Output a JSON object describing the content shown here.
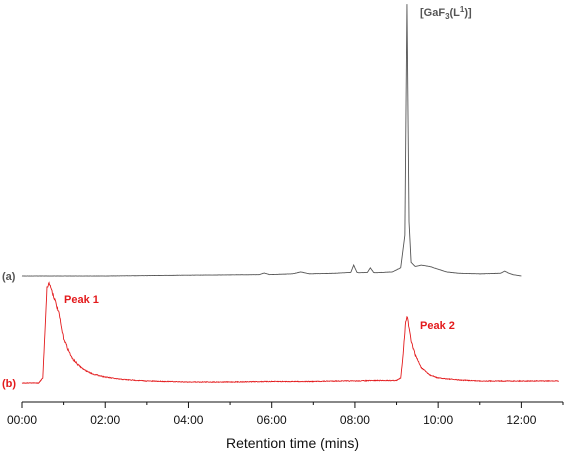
{
  "chart_data": {
    "type": "line",
    "title": "",
    "xlabel": "Retention time (mins)",
    "ylabel": "",
    "x_unit": "min",
    "xlim": [
      0,
      13
    ],
    "x_ticks": [
      0,
      2,
      4,
      6,
      8,
      10,
      12
    ],
    "x_tick_labels": [
      "00:00",
      "02:00",
      "04:00",
      "06:00",
      "08:00",
      "10:00",
      "12:00"
    ],
    "y_axis_shown": false,
    "grid": false,
    "legend": "none",
    "series": [
      {
        "label": "(a)",
        "color": "#555555",
        "x": [
          0.0,
          2.0,
          4.0,
          5.7,
          5.82,
          5.95,
          6.5,
          6.7,
          6.9,
          7.5,
          7.9,
          7.97,
          8.05,
          8.1,
          8.3,
          8.37,
          8.45,
          8.5,
          8.9,
          9.1,
          9.2,
          9.25,
          9.3,
          9.35,
          9.45,
          9.6,
          9.8,
          10.0,
          10.2,
          10.5,
          11.0,
          11.5,
          11.6,
          11.7,
          11.8,
          12.0
        ],
        "y": [
          0.0,
          0.0,
          0.003,
          0.005,
          0.011,
          0.005,
          0.008,
          0.015,
          0.008,
          0.01,
          0.013,
          0.04,
          0.013,
          0.012,
          0.013,
          0.03,
          0.013,
          0.012,
          0.015,
          0.03,
          0.15,
          1.0,
          0.2,
          0.05,
          0.035,
          0.04,
          0.035,
          0.025,
          0.015,
          0.01,
          0.008,
          0.01,
          0.018,
          0.01,
          0.005,
          0.0
        ]
      },
      {
        "label": "(b)",
        "color": "#e31a1c",
        "x": [
          0.0,
          0.4,
          0.5,
          0.55,
          0.6,
          0.65,
          0.7,
          0.75,
          0.8,
          0.85,
          0.9,
          0.95,
          1.0,
          1.1,
          1.2,
          1.35,
          1.5,
          1.7,
          2.0,
          2.3,
          2.6,
          3.0,
          4.0,
          5.0,
          6.0,
          7.0,
          7.5,
          8.0,
          8.5,
          9.0,
          9.1,
          9.15,
          9.22,
          9.26,
          9.3,
          9.35,
          9.45,
          9.6,
          9.8,
          10.0,
          10.5,
          11.0,
          12.0,
          12.9
        ],
        "y": [
          0.0,
          0.0,
          0.05,
          0.5,
          0.95,
          1.0,
          0.95,
          0.88,
          0.82,
          0.75,
          0.68,
          0.55,
          0.45,
          0.34,
          0.25,
          0.18,
          0.13,
          0.09,
          0.06,
          0.04,
          0.03,
          0.02,
          0.01,
          0.01,
          0.015,
          0.015,
          0.02,
          0.02,
          0.025,
          0.025,
          0.05,
          0.25,
          0.62,
          0.66,
          0.55,
          0.42,
          0.28,
          0.15,
          0.08,
          0.05,
          0.03,
          0.02,
          0.02,
          0.02
        ]
      }
    ],
    "annotations": [
      {
        "text": "[GaF",
        "sub": "3",
        "mid": "(L",
        "sup": "1",
        "end": ")]",
        "series": 0,
        "x": 9.27,
        "color": "#555555"
      },
      {
        "text": "Peak 1",
        "series": 1,
        "x": 1.05,
        "color": "#e31a1c"
      },
      {
        "text": "Peak 2",
        "series": 1,
        "x": 9.55,
        "color": "#e31a1c"
      }
    ]
  }
}
